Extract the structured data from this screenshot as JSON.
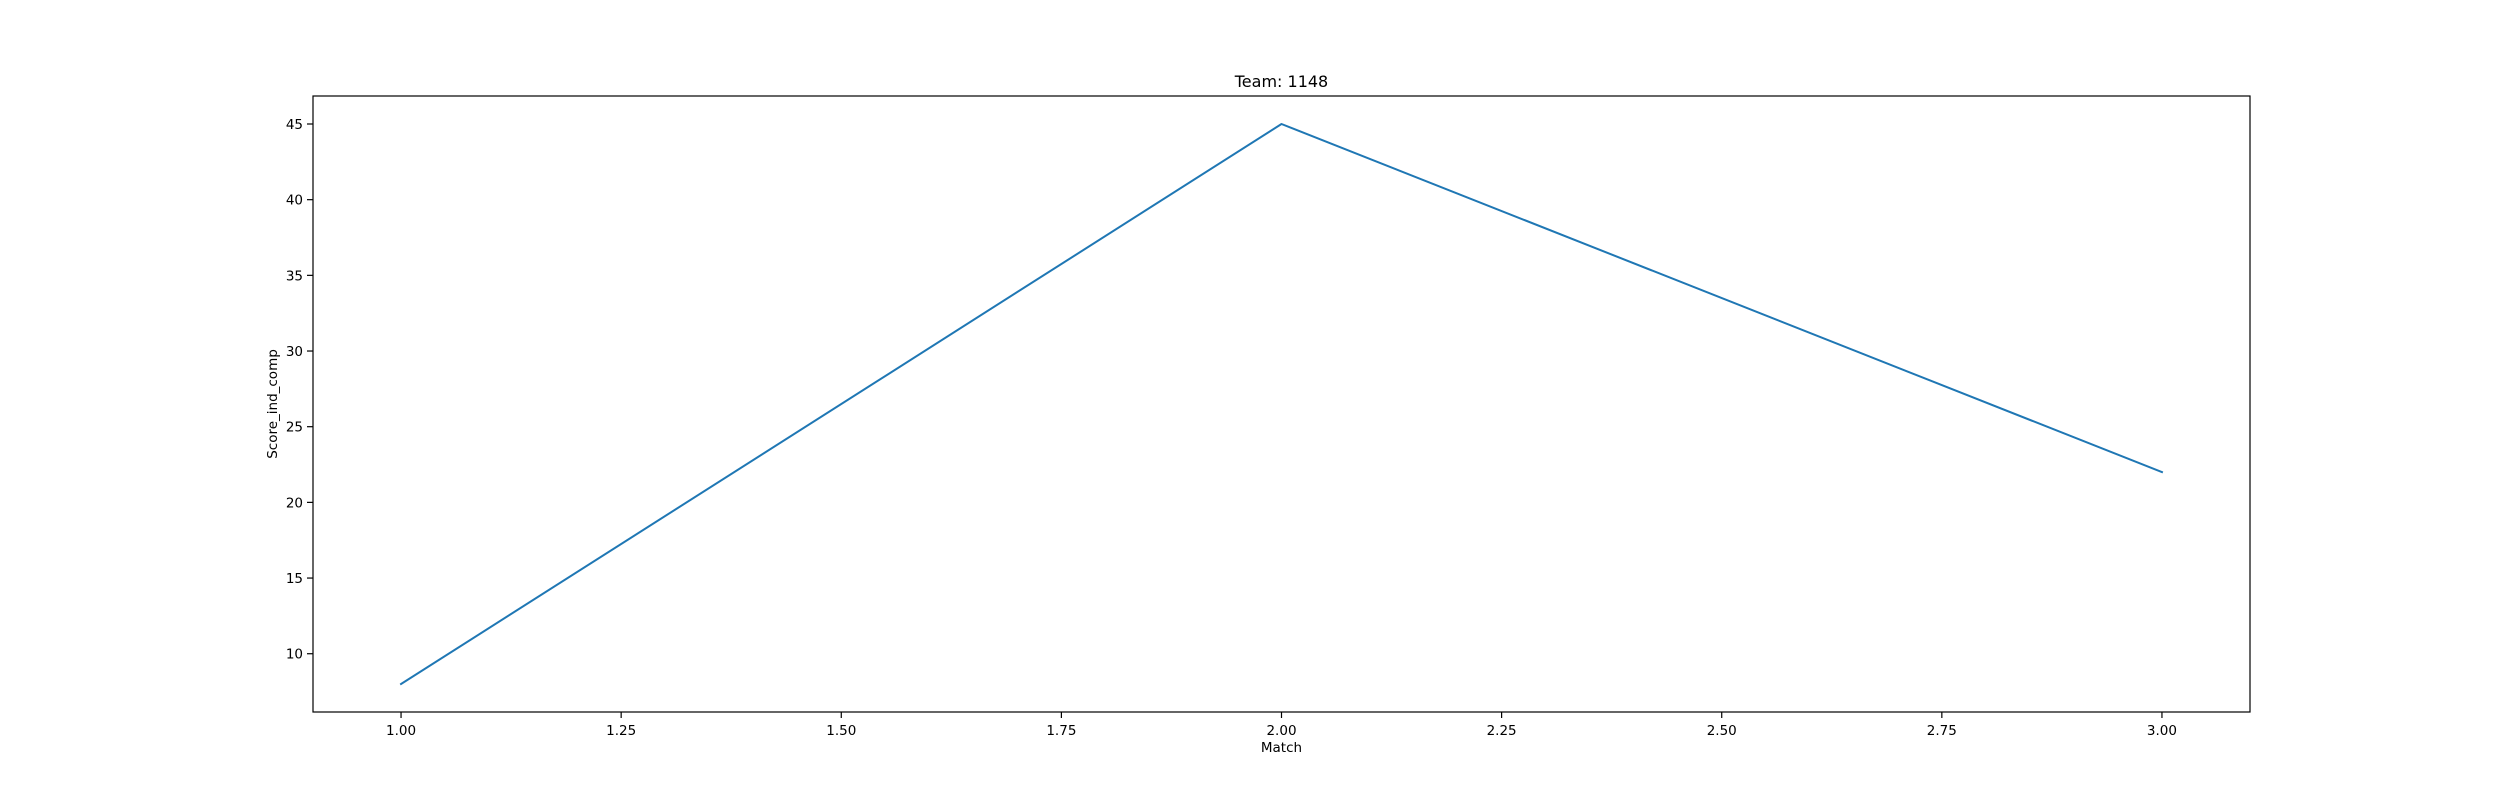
{
  "chart_data": {
    "type": "line",
    "title": "Team: 1148",
    "xlabel": "Match",
    "ylabel": "Score_ind_comp",
    "xlim": [
      0.9,
      3.1
    ],
    "ylim": [
      6.15,
      46.85
    ],
    "x_ticks": [
      1.0,
      1.25,
      1.5,
      1.75,
      2.0,
      2.25,
      2.5,
      2.75,
      3.0
    ],
    "x_tick_labels": [
      "1.00",
      "1.25",
      "1.50",
      "1.75",
      "2.00",
      "2.25",
      "2.50",
      "2.75",
      "3.00"
    ],
    "y_ticks": [
      10,
      15,
      20,
      25,
      30,
      35,
      40,
      45
    ],
    "y_tick_labels": [
      "10",
      "15",
      "20",
      "25",
      "30",
      "35",
      "40",
      "45"
    ],
    "grid": false,
    "legend": false,
    "series": [
      {
        "x": [
          1,
          2,
          3
        ],
        "values": [
          8,
          45,
          22
        ],
        "color": "#1f77b4"
      }
    ]
  }
}
